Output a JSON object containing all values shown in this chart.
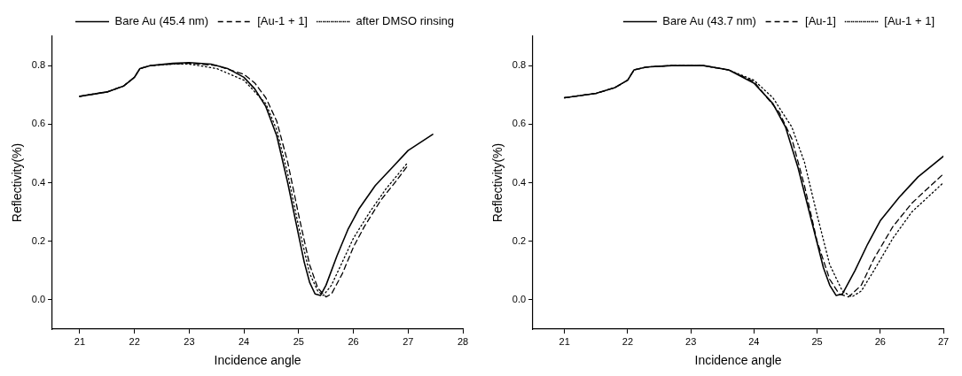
{
  "chart_data": [
    {
      "type": "line",
      "xlabel": "Incidence angle",
      "ylabel": "Reflectivity(%)",
      "xlim": [
        20.5,
        28
      ],
      "ylim": [
        -0.1,
        0.9
      ],
      "xticks": [
        21,
        22,
        23,
        24,
        25,
        26,
        27,
        28
      ],
      "yticks": [
        {
          "value": 0,
          "label": "0.0"
        },
        {
          "value": 0.2,
          "label": "0.2"
        },
        {
          "value": 0.4,
          "label": "0.4"
        },
        {
          "value": 0.6,
          "label": "0.6"
        },
        {
          "value": 0.8,
          "label": "0.8"
        }
      ],
      "grid": false,
      "legend": "top right",
      "marker": "none",
      "series": [
        {
          "name": "Bare Au (45.4 nm)",
          "color": "#000000",
          "line_style": "solid",
          "x": [
            21,
            21.5,
            21.8,
            22.0,
            22.1,
            22.3,
            22.7,
            23.0,
            23.4,
            23.7,
            24.0,
            24.2,
            24.4,
            24.6,
            24.8,
            25.0,
            25.1,
            25.2,
            25.3,
            25.4,
            25.5,
            25.7,
            25.9,
            26.1,
            26.4,
            26.7,
            27.0,
            27.45
          ],
          "values": [
            0.695,
            0.71,
            0.73,
            0.76,
            0.79,
            0.8,
            0.808,
            0.81,
            0.805,
            0.79,
            0.76,
            0.72,
            0.66,
            0.56,
            0.4,
            0.22,
            0.13,
            0.06,
            0.02,
            0.015,
            0.05,
            0.15,
            0.24,
            0.31,
            0.39,
            0.45,
            0.51,
            0.565
          ]
        },
        {
          "name": "[Au-1 + 1]",
          "color": "#000000",
          "line_style": "dashed",
          "x": [
            21,
            21.5,
            21.8,
            22.0,
            22.1,
            22.3,
            22.7,
            23.0,
            23.5,
            24.0,
            24.2,
            24.4,
            24.6,
            24.8,
            25.0,
            25.2,
            25.35,
            25.5,
            25.6,
            25.8,
            26.0,
            26.2,
            26.5,
            26.8,
            27.0
          ],
          "values": [
            0.695,
            0.71,
            0.73,
            0.76,
            0.79,
            0.8,
            0.805,
            0.808,
            0.8,
            0.77,
            0.74,
            0.69,
            0.61,
            0.47,
            0.29,
            0.12,
            0.04,
            0.01,
            0.02,
            0.09,
            0.18,
            0.25,
            0.34,
            0.41,
            0.46
          ]
        },
        {
          "name": "after DMSO rinsing",
          "color": "#000000",
          "line_style": "dotted",
          "x": [
            21,
            21.5,
            21.8,
            22.0,
            22.1,
            22.3,
            22.7,
            23.0,
            23.5,
            24.0,
            24.4,
            24.6,
            24.8,
            25.0,
            25.2,
            25.35,
            25.45,
            25.6,
            25.8,
            26.0,
            26.3,
            26.6,
            27.0
          ],
          "values": [
            0.695,
            0.71,
            0.73,
            0.76,
            0.79,
            0.8,
            0.805,
            0.805,
            0.79,
            0.75,
            0.67,
            0.58,
            0.43,
            0.25,
            0.09,
            0.03,
            0.015,
            0.05,
            0.13,
            0.21,
            0.3,
            0.38,
            0.47
          ]
        }
      ]
    },
    {
      "type": "line",
      "xlabel": "Incidence angle",
      "ylabel": "Reflectivity(%)",
      "xlim": [
        20.5,
        27
      ],
      "ylim": [
        -0.1,
        0.9
      ],
      "xticks": [
        21,
        22,
        23,
        24,
        25,
        26,
        27
      ],
      "yticks": [
        {
          "value": 0,
          "label": "0.0"
        },
        {
          "value": 0.2,
          "label": "0.2"
        },
        {
          "value": 0.4,
          "label": "0.4"
        },
        {
          "value": 0.6,
          "label": "0.6"
        },
        {
          "value": 0.8,
          "label": "0.8"
        }
      ],
      "grid": false,
      "legend": "top right",
      "marker": "none",
      "series": [
        {
          "name": "Bare Au (43.7 nm)",
          "color": "#000000",
          "line_style": "solid",
          "x": [
            21,
            21.5,
            21.8,
            22.0,
            22.1,
            22.3,
            22.7,
            23.2,
            23.6,
            24.0,
            24.3,
            24.5,
            24.7,
            24.9,
            25.1,
            25.2,
            25.3,
            25.4,
            25.6,
            25.8,
            26.0,
            26.3,
            26.6,
            27.0
          ],
          "values": [
            0.69,
            0.705,
            0.725,
            0.75,
            0.785,
            0.795,
            0.8,
            0.8,
            0.785,
            0.74,
            0.67,
            0.59,
            0.45,
            0.28,
            0.11,
            0.05,
            0.015,
            0.02,
            0.1,
            0.19,
            0.27,
            0.35,
            0.42,
            0.49
          ]
        },
        {
          "name": "[Au-1]",
          "color": "#000000",
          "line_style": "dashed",
          "x": [
            21,
            21.5,
            21.8,
            22.0,
            22.1,
            22.3,
            22.7,
            23.2,
            23.6,
            24.0,
            24.4,
            24.6,
            24.8,
            25.0,
            25.2,
            25.35,
            25.5,
            25.7,
            25.9,
            26.2,
            26.5,
            26.8,
            27.0
          ],
          "values": [
            0.69,
            0.705,
            0.725,
            0.75,
            0.785,
            0.795,
            0.8,
            0.8,
            0.785,
            0.745,
            0.64,
            0.55,
            0.39,
            0.2,
            0.07,
            0.02,
            0.01,
            0.05,
            0.14,
            0.25,
            0.33,
            0.39,
            0.43
          ]
        },
        {
          "name": "[Au-1 + 1]",
          "color": "#000000",
          "line_style": "dotted",
          "x": [
            21,
            21.5,
            21.8,
            22.0,
            22.1,
            22.3,
            22.7,
            23.2,
            23.6,
            24.0,
            24.3,
            24.6,
            24.8,
            25.0,
            25.2,
            25.4,
            25.55,
            25.7,
            25.9,
            26.2,
            26.5,
            26.8,
            27.0
          ],
          "values": [
            0.69,
            0.705,
            0.725,
            0.75,
            0.785,
            0.795,
            0.8,
            0.8,
            0.785,
            0.75,
            0.69,
            0.59,
            0.47,
            0.29,
            0.12,
            0.03,
            0.01,
            0.03,
            0.1,
            0.21,
            0.3,
            0.36,
            0.4
          ]
        }
      ]
    }
  ]
}
